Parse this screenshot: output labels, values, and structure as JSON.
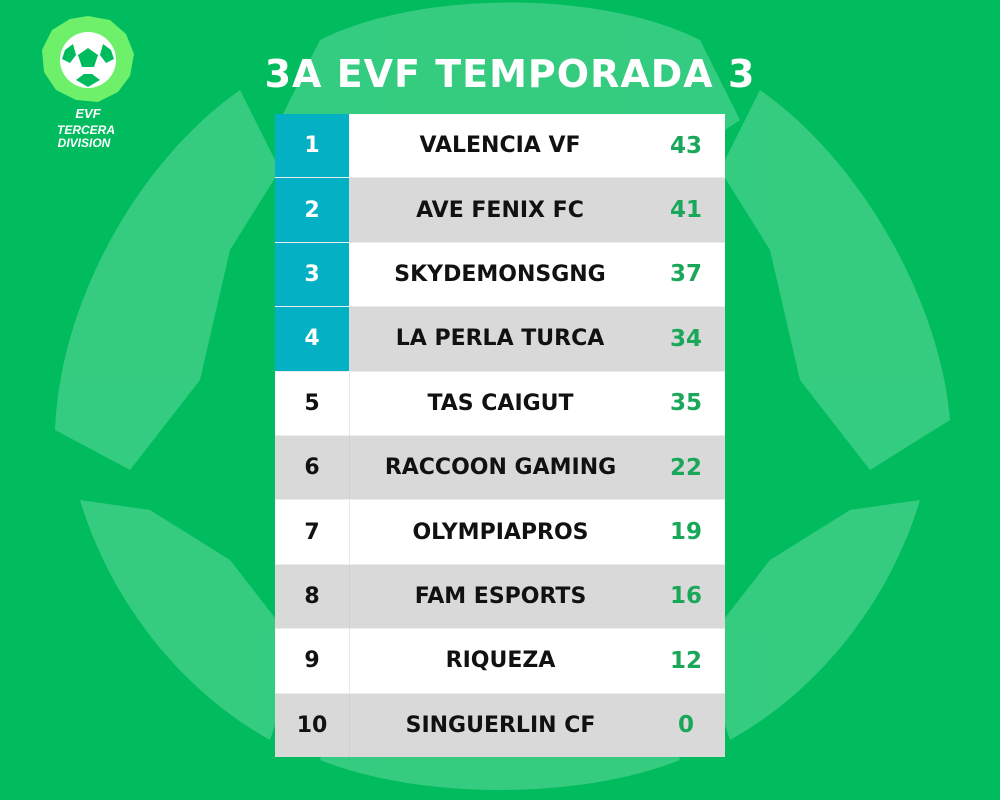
{
  "title": "3A EVF TEMPORADA 3",
  "logo": {
    "line1": "EVF",
    "line2": "TERCERA",
    "line3": "DIVISION"
  },
  "colors": {
    "background": "#00bc5e",
    "qualified": "#04b0c4",
    "points": "#1aa75a"
  },
  "standings": [
    {
      "pos": "1",
      "team": "VALENCIA VF",
      "pts": "43",
      "highlight": true
    },
    {
      "pos": "2",
      "team": "AVE FENIX FC",
      "pts": "41",
      "highlight": true
    },
    {
      "pos": "3",
      "team": "SKYDEMONSGNG",
      "pts": "37",
      "highlight": true
    },
    {
      "pos": "4",
      "team": "LA PERLA TURCA",
      "pts": "34",
      "highlight": true
    },
    {
      "pos": "5",
      "team": "TAS CAIGUT",
      "pts": "35",
      "highlight": false
    },
    {
      "pos": "6",
      "team": "RACCOON GAMING",
      "pts": "22",
      "highlight": false
    },
    {
      "pos": "7",
      "team": "OLYMPIAPROS",
      "pts": "19",
      "highlight": false
    },
    {
      "pos": "8",
      "team": "FAM ESPORTS",
      "pts": "16",
      "highlight": false
    },
    {
      "pos": "9",
      "team": "RIQUEZA",
      "pts": "12",
      "highlight": false
    },
    {
      "pos": "10",
      "team": "SINGUERLIN CF",
      "pts": "0",
      "highlight": false
    }
  ]
}
